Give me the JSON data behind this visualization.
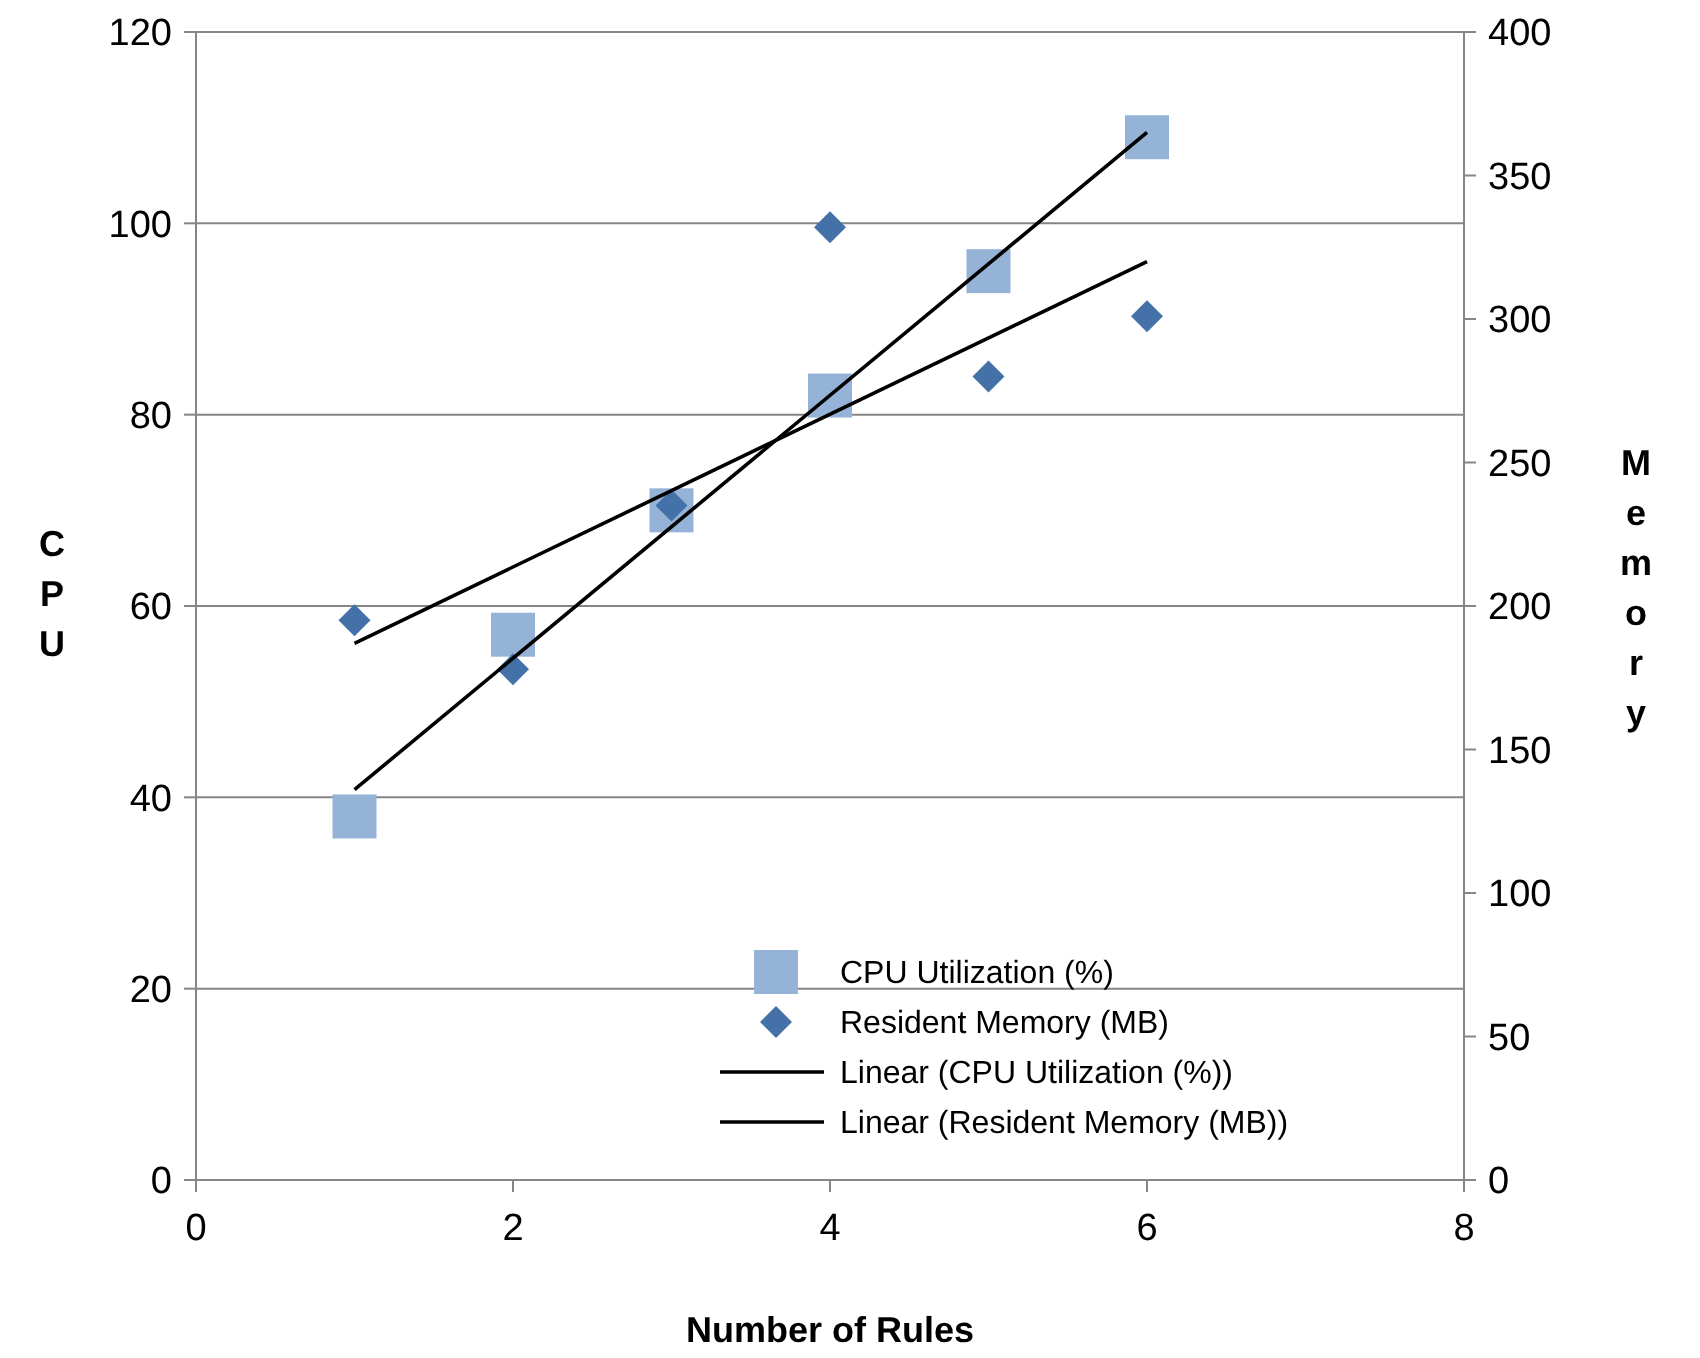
{
  "chart_data": {
    "type": "scatter",
    "xlabel": "Number of Rules",
    "ylabel": "CPU",
    "y2label": "Memory",
    "xlim": [
      0,
      8
    ],
    "xticks": [
      0,
      2,
      4,
      6,
      8
    ],
    "ylim": [
      0,
      120
    ],
    "yticks": [
      0,
      20,
      40,
      60,
      80,
      100,
      120
    ],
    "y2lim": [
      0,
      400
    ],
    "y2ticks": [
      0,
      50,
      100,
      150,
      200,
      250,
      300,
      350,
      400
    ],
    "grid": "y",
    "legend": "bottom right",
    "series": [
      {
        "name": "CPU Utilization (%)",
        "color": "#95b3d7",
        "marker": "square",
        "x": [
          1,
          2,
          3,
          4,
          5,
          6
        ],
        "values": [
          38,
          57,
          70,
          82,
          95,
          109
        ]
      },
      {
        "name": "Resident Memory (MB)",
        "color": "#4472a8",
        "marker": "diamond",
        "axis": "y2",
        "x": [
          1,
          2,
          3,
          4,
          5,
          6
        ],
        "values": [
          195,
          178,
          235,
          332,
          280,
          301
        ]
      },
      {
        "name": "Linear (CPU Utilization (%))",
        "type": "line",
        "color": "#000000",
        "marker": "none",
        "x": [
          1,
          6
        ],
        "values": [
          40.8,
          109.5
        ]
      },
      {
        "name": "Linear (Resident Memory (MB))",
        "type": "line",
        "color": "#000000",
        "marker": "none",
        "axis": "y2",
        "x": [
          1,
          6
        ],
        "values": [
          187,
          320
        ]
      }
    ]
  }
}
